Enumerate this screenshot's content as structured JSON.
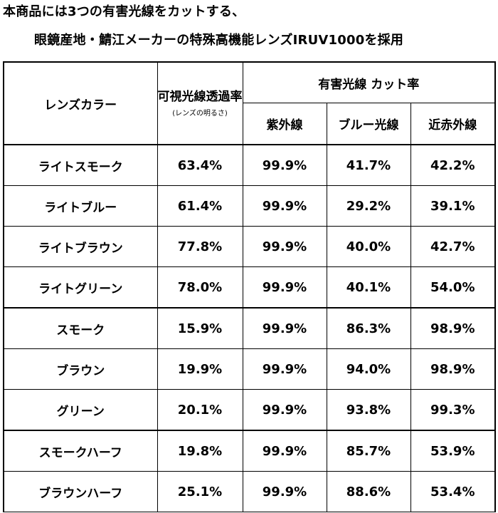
{
  "heading": {
    "line1": "本商品には3つの有害光線をカットする、",
    "line2": "眼鏡産地・鯖江メーカーの特殊高機能レンズIRUV1000を採用"
  },
  "table": {
    "col_color": "レンズカラー",
    "col_visible": "可視光線透過率",
    "col_visible_sub": "(レンズの明るさ)",
    "col_cut_group": "有害光線 カット率",
    "col_uv": "紫外線",
    "col_blue": "ブルー光線",
    "col_ir": "近赤外線",
    "rows": [
      {
        "name": "ライトスモーク",
        "visible": "63.4%",
        "uv": "99.9%",
        "blue": "41.7%",
        "ir": "42.2%"
      },
      {
        "name": "ライトブルー",
        "visible": "61.4%",
        "uv": "99.9%",
        "blue": "29.2%",
        "ir": "39.1%"
      },
      {
        "name": "ライトブラウン",
        "visible": "77.8%",
        "uv": "99.9%",
        "blue": "40.0%",
        "ir": "42.7%"
      },
      {
        "name": "ライトグリーン",
        "visible": "78.0%",
        "uv": "99.9%",
        "blue": "40.1%",
        "ir": "54.0%"
      },
      {
        "name": "スモーク",
        "visible": "15.9%",
        "uv": "99.9%",
        "blue": "86.3%",
        "ir": "98.9%"
      },
      {
        "name": "ブラウン",
        "visible": "19.9%",
        "uv": "99.9%",
        "blue": "94.0%",
        "ir": "98.9%"
      },
      {
        "name": "グリーン",
        "visible": "20.1%",
        "uv": "99.9%",
        "blue": "93.8%",
        "ir": "99.3%"
      },
      {
        "name": "スモークハーフ",
        "visible": "19.8%",
        "uv": "99.9%",
        "blue": "85.7%",
        "ir": "53.9%"
      },
      {
        "name": "ブラウンハーフ",
        "visible": "25.1%",
        "uv": "99.9%",
        "blue": "88.6%",
        "ir": "53.4%"
      }
    ]
  }
}
